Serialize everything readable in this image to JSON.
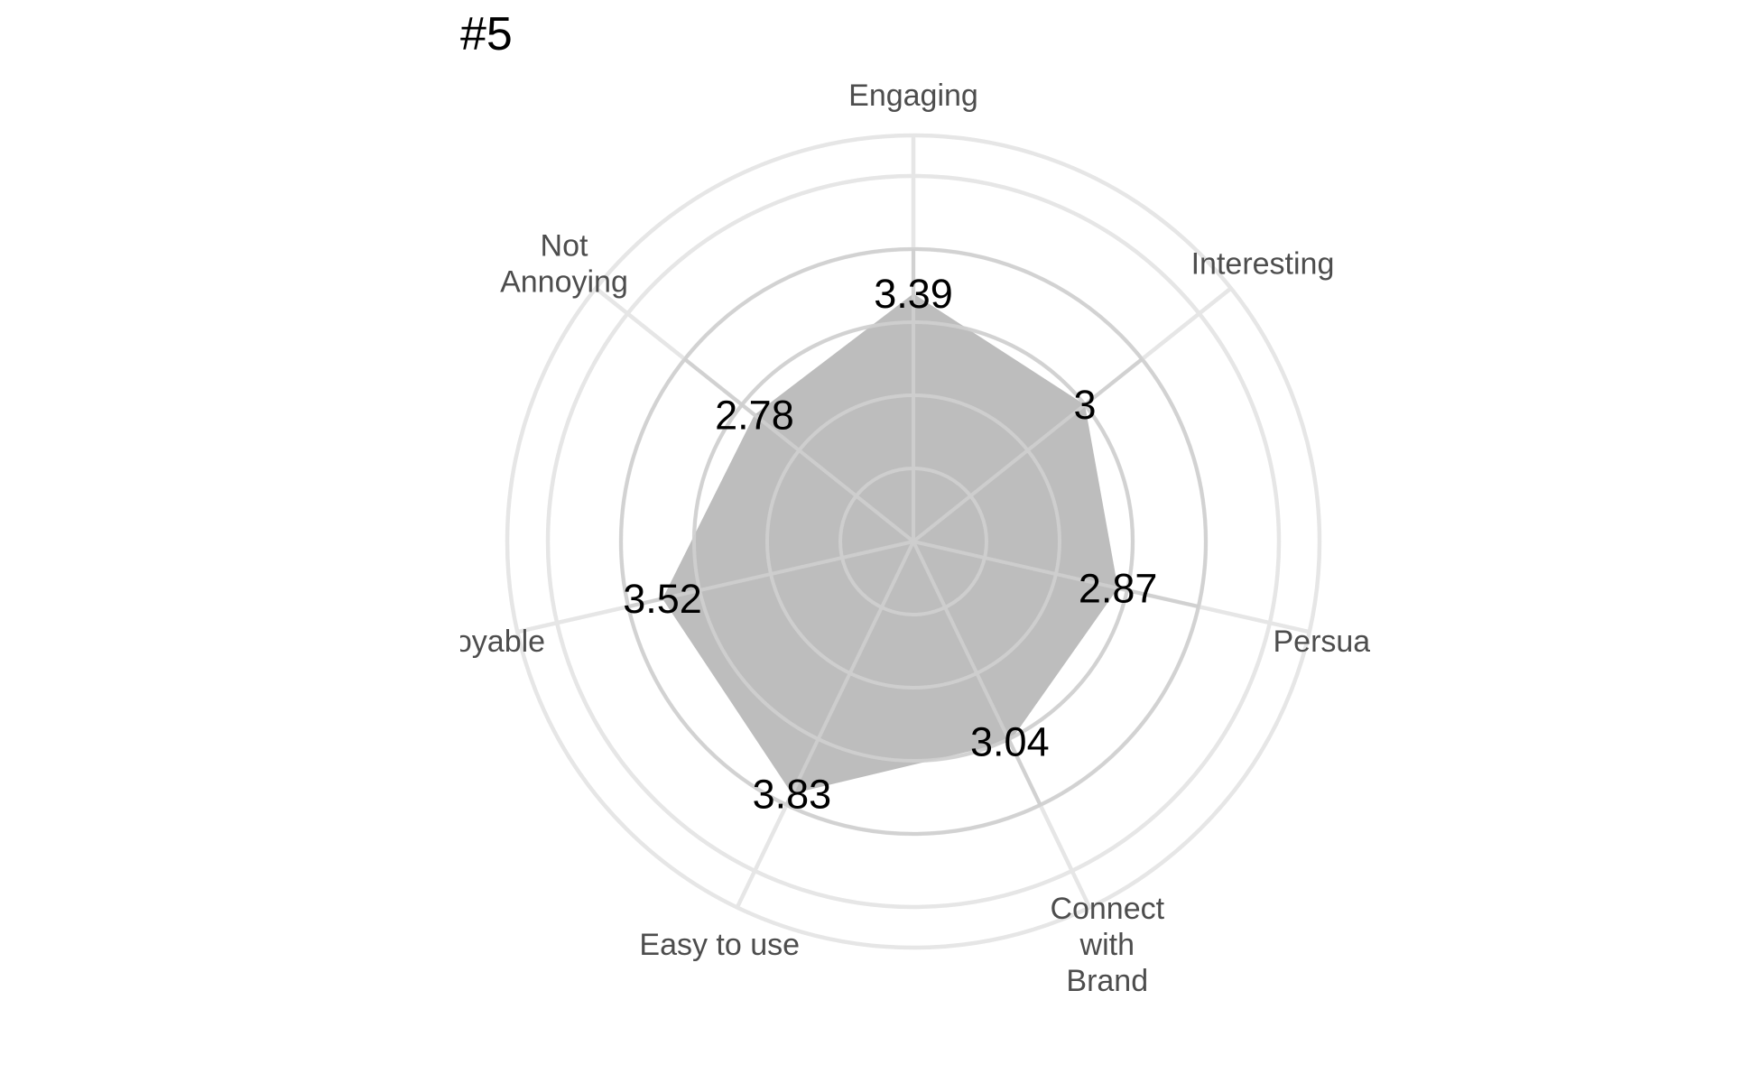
{
  "chart_data": {
    "type": "radar",
    "title": "#5",
    "categories": [
      "Easy to use",
      "Enjoyable",
      "Not\nAnnoying",
      "Engaging",
      "Interesting",
      "Persuasive",
      "Connect\nwith\nBrand"
    ],
    "values": [
      3.83,
      3.52,
      2.78,
      3.39,
      3,
      2.87,
      3.04
    ],
    "value_labels": [
      "3.83",
      "3.52",
      "2.78",
      "3.39",
      "3",
      "2.87",
      "3.04"
    ],
    "rlim": [
      0,
      5
    ],
    "grid": true,
    "legend": "none",
    "colors": {
      "fill": "#bdbdbd",
      "grid": "#e6e6e6",
      "grid_inner": "#cfcfcf",
      "axis_label": "#4d4d4d",
      "value_label": "#000000"
    }
  }
}
